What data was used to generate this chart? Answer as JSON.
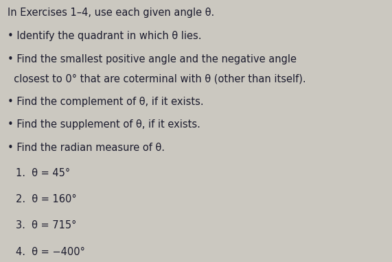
{
  "background_color": "#cbc8c0",
  "text_color": "#1c1c2e",
  "title_line": "In Exercises 1–4, use each given angle θ.",
  "bullet_line1": "• Identify the quadrant in which θ lies.",
  "bullet_line2a": "• Find the smallest positive angle and the negative angle",
  "bullet_line2b": "  closest to 0° that are coterminal with θ (other than itself).",
  "bullet_line3": "• Find the complement of θ, if it exists.",
  "bullet_line4": "• Find the supplement of θ, if it exists.",
  "bullet_line5": "• Find the radian measure of θ.",
  "num1": "1.  θ = 45°",
  "num2": "2.  θ = 160°",
  "num3": "3.  θ = 715°",
  "num4": "4.  θ = −400°",
  "title_fontsize": 10.5,
  "bullet_fontsize": 10.5,
  "num_fontsize": 10.5,
  "fig_width": 5.71,
  "fig_height": 3.82,
  "dpi": 100
}
